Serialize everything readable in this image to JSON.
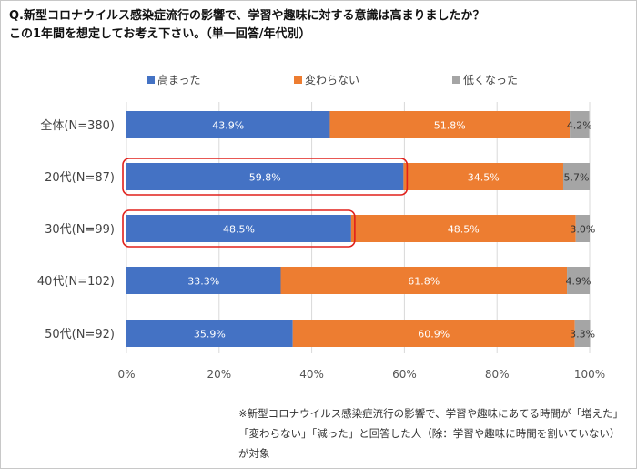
{
  "title_line1": "Q.新型コロナウイルス感染症流行の影響で、学習や趣味に対する意識は高まりましたか？",
  "title_line2": "この1年間を想定してお考え下さい。（単一回答/年代別）",
  "note": "※新型コロナウイルス感染症流行の影響で、学習や趣味にあてる時間が「増えた」「変わらない」「減った」と回答した人（除：学習や趣味に時間を割いていない）が対象",
  "colors": {
    "series": [
      "#4472C4",
      "#ED7D31",
      "#A5A5A5"
    ],
    "highlight": "#E0201B",
    "grid": "#D9D9D9"
  },
  "chart_data": {
    "type": "bar",
    "orientation": "horizontal",
    "stacked": true,
    "categories": [
      "全体(N=380)",
      "20代(N=87)",
      "30代(N=99)",
      "40代(N=102)",
      "50代(N=92)"
    ],
    "series": [
      {
        "name": "高まった",
        "values": [
          43.9,
          59.8,
          48.5,
          33.3,
          35.9
        ]
      },
      {
        "name": "変わらない",
        "values": [
          51.8,
          34.5,
          48.5,
          61.8,
          60.9
        ]
      },
      {
        "name": "低くなった",
        "values": [
          4.2,
          5.7,
          3.0,
          4.9,
          3.3
        ]
      }
    ],
    "xlim": [
      0,
      100
    ],
    "xticks": [
      "0%",
      "20%",
      "40%",
      "60%",
      "80%",
      "100%"
    ],
    "grid": true,
    "legend_position": "top",
    "data_labels": true,
    "highlighted": [
      {
        "category": "20代(N=87)",
        "series": "高まった"
      },
      {
        "category": "30代(N=99)",
        "series": "高まった"
      }
    ]
  }
}
